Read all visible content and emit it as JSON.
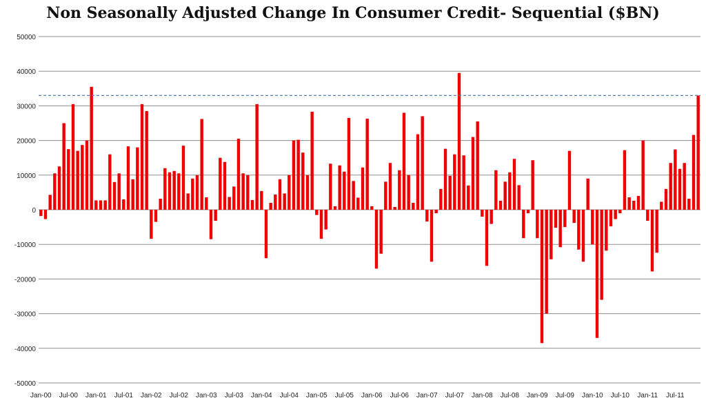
{
  "chart_data": {
    "type": "bar",
    "title": "Non Seasonally Adjusted Change In Consumer Credit- Sequential ($BN)",
    "xlabel": "",
    "ylabel": "",
    "ylim": [
      -50000,
      50000
    ],
    "yticks": [
      50000,
      40000,
      30000,
      20000,
      10000,
      0,
      -10000,
      -20000,
      -30000,
      -40000,
      -50000
    ],
    "x_tick_labels": [
      "Jan-00",
      "Jul-00",
      "Jan-01",
      "Jul-01",
      "Jan-02",
      "Jul-02",
      "Jan-03",
      "Jul-03",
      "Jan-04",
      "Jul-04",
      "Jan-05",
      "Jul-05",
      "Jan-06",
      "Jul-06",
      "Jan-07",
      "Jul-07",
      "Jan-08",
      "Jul-08",
      "Jan-09",
      "Jul-09",
      "Jan-10",
      "Jul-10",
      "Jan-11",
      "Jul-11"
    ],
    "grid": true,
    "bar_color": "#ee0000",
    "reference_line": {
      "value": 33000,
      "color": "#4f81bd",
      "style": "dashed"
    },
    "series": [
      {
        "values": [
          -1800,
          -2700,
          4300,
          10500,
          12500,
          25000,
          17500,
          30500,
          17000,
          18700,
          20000,
          35500,
          2700,
          2700,
          2700,
          16000,
          8000,
          10500,
          3000,
          18300,
          8800,
          18000,
          30500,
          28500,
          -8400,
          -3500,
          3200,
          12000,
          10800,
          11200,
          10500,
          18500,
          4700,
          9000,
          10000,
          26200,
          3600,
          -8500,
          -3200,
          15000,
          13800,
          3700,
          6700,
          20500,
          10500,
          10000,
          2800,
          30500,
          5400,
          -14000,
          2000,
          4400,
          8800,
          4700,
          10000,
          20000,
          20200,
          16500,
          10000,
          28300,
          -1500,
          -8400,
          -5700,
          13300,
          1000,
          12800,
          11000,
          26500,
          8300,
          3500,
          12200,
          26300,
          1000,
          -17000,
          -12700,
          8100,
          13500,
          800,
          11400,
          28000,
          10000,
          2000,
          21800,
          27000,
          -3400,
          -15000,
          -1000,
          6000,
          17600,
          9800,
          16000,
          39500,
          15700,
          7000,
          21000,
          25500,
          -2000,
          -16200,
          -4100,
          11400,
          2600,
          8100,
          10800,
          14700,
          7100,
          -8200,
          -1000,
          14300,
          -8200,
          -38500,
          -30000,
          -14300,
          -5200,
          -10800,
          -5000,
          17000,
          -3800,
          -11500,
          -15000,
          9000,
          -10000,
          -37000,
          -26000,
          -11800,
          -4800,
          -2700,
          -1000,
          17200,
          3600,
          2600,
          4000,
          20000,
          -3200,
          -17800,
          -12400,
          2300,
          6000,
          13500,
          17400,
          11800,
          13500,
          3200,
          21600,
          33000
        ]
      }
    ]
  }
}
